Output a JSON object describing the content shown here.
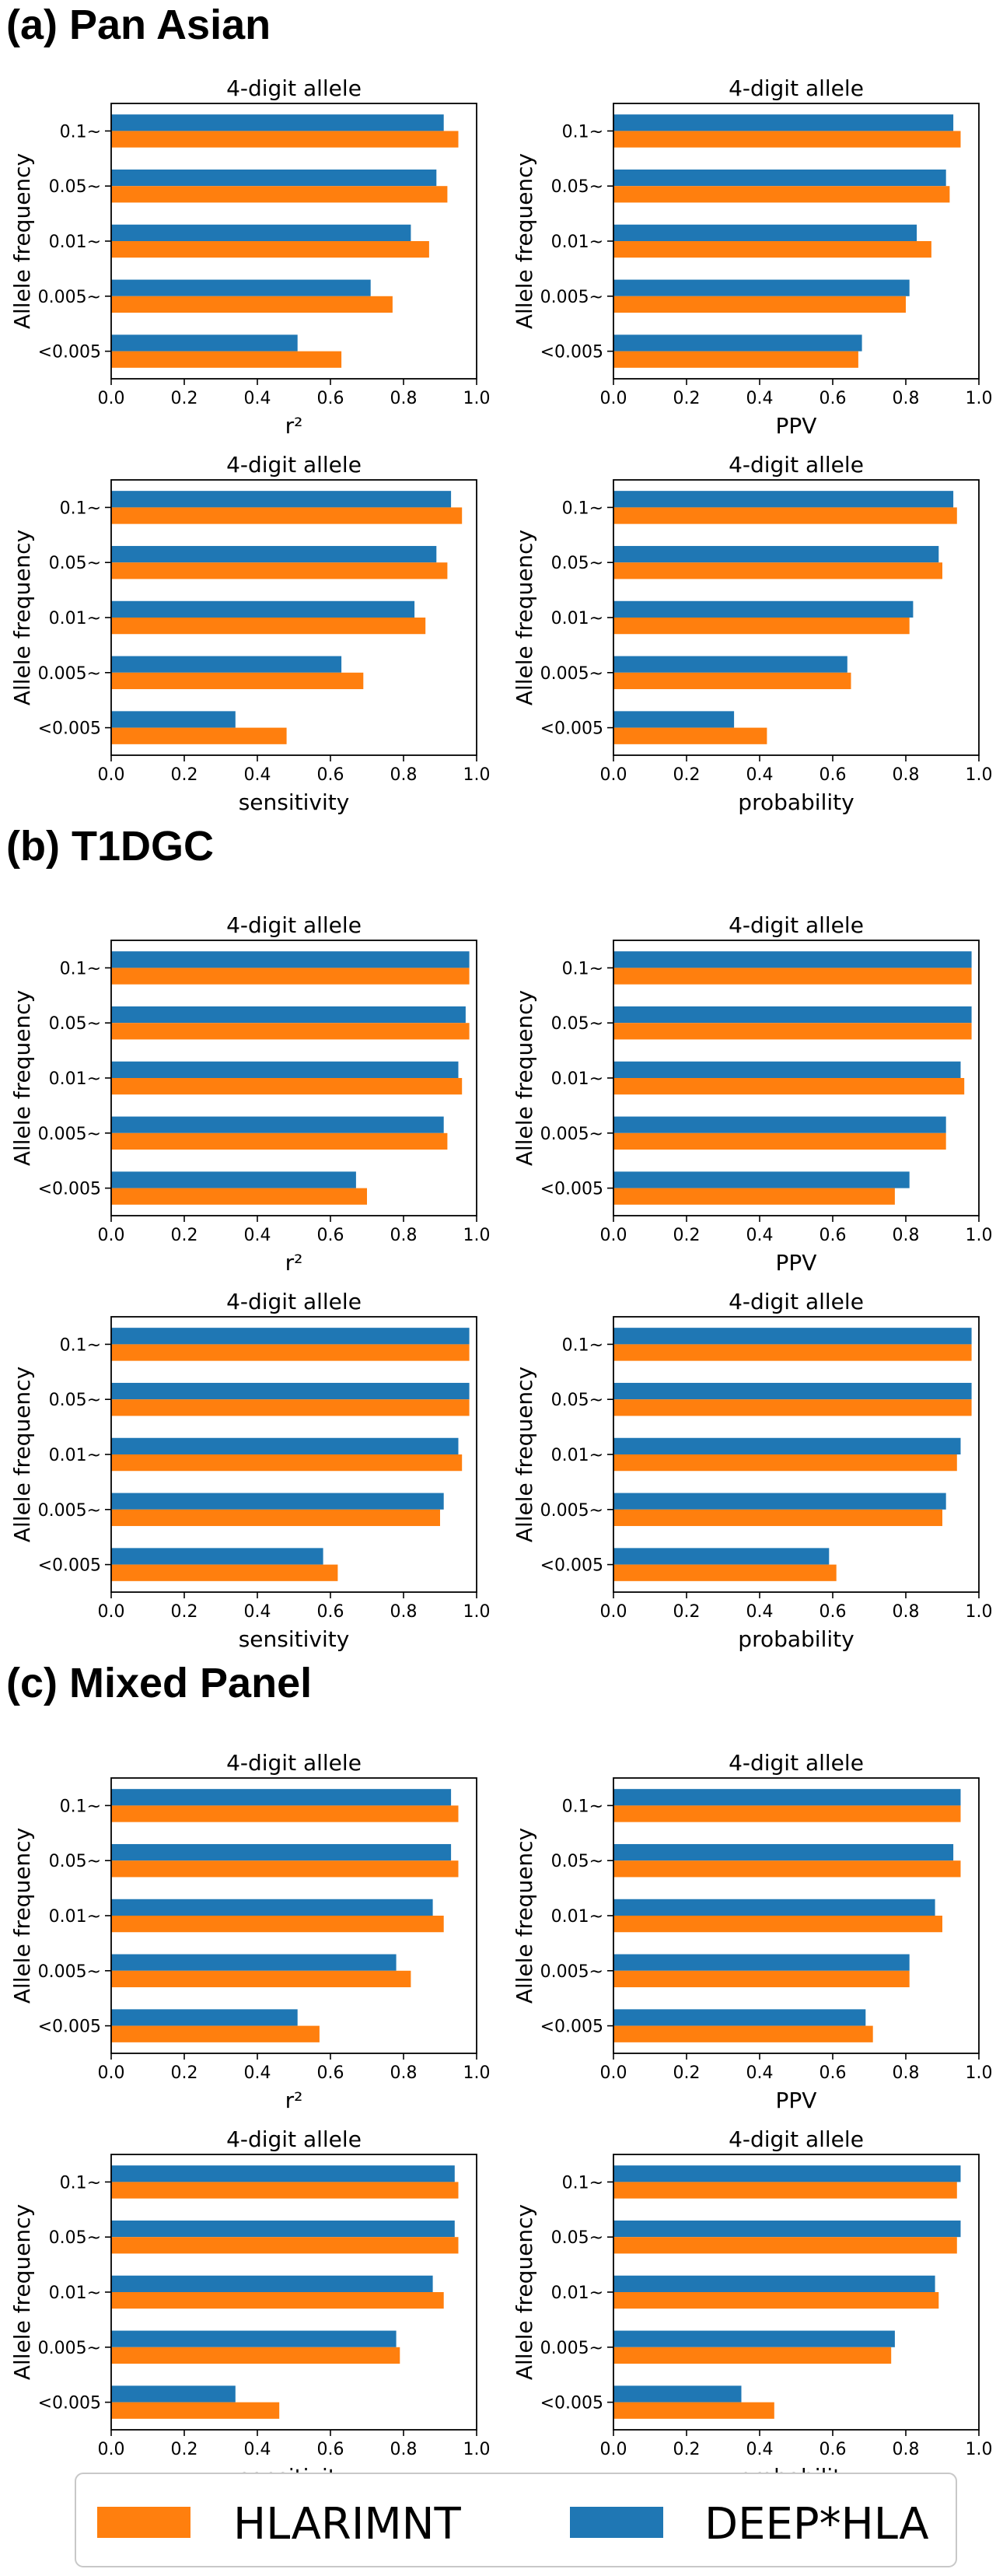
{
  "legend": {
    "items": [
      {
        "label": "HLARIMNT",
        "color": "#ff7f0e"
      },
      {
        "label": "DEEP*HLA",
        "color": "#1f77b4"
      }
    ]
  },
  "chart_data": [
    {
      "section": "(a) Pan Asian",
      "panels": [
        {
          "type": "bar",
          "orientation": "horizontal",
          "title": "4-digit allele",
          "xlabel": "r²",
          "ylabel": "Allele frequency",
          "categories": [
            "0.1~",
            "0.05~",
            "0.01~",
            "0.005~",
            "<0.005"
          ],
          "xlim": [
            0,
            1.0
          ],
          "xticks": [
            "0.0",
            "0.2",
            "0.4",
            "0.6",
            "0.8",
            "1.0"
          ],
          "series": [
            {
              "name": "DEEP*HLA",
              "values": [
                0.91,
                0.89,
                0.82,
                0.71,
                0.51
              ]
            },
            {
              "name": "HLARIMNT",
              "values": [
                0.95,
                0.92,
                0.87,
                0.77,
                0.63
              ]
            }
          ]
        },
        {
          "type": "bar",
          "orientation": "horizontal",
          "title": "4-digit allele",
          "xlabel": "PPV",
          "ylabel": "Allele frequency",
          "categories": [
            "0.1~",
            "0.05~",
            "0.01~",
            "0.005~",
            "<0.005"
          ],
          "xlim": [
            0,
            1.0
          ],
          "xticks": [
            "0.0",
            "0.2",
            "0.4",
            "0.6",
            "0.8",
            "1.0"
          ],
          "series": [
            {
              "name": "DEEP*HLA",
              "values": [
                0.93,
                0.91,
                0.83,
                0.81,
                0.68
              ]
            },
            {
              "name": "HLARIMNT",
              "values": [
                0.95,
                0.92,
                0.87,
                0.8,
                0.67
              ]
            }
          ]
        },
        {
          "type": "bar",
          "orientation": "horizontal",
          "title": "4-digit allele",
          "xlabel": "sensitivity",
          "ylabel": "Allele frequency",
          "categories": [
            "0.1~",
            "0.05~",
            "0.01~",
            "0.005~",
            "<0.005"
          ],
          "xlim": [
            0,
            1.0
          ],
          "xticks": [
            "0.0",
            "0.2",
            "0.4",
            "0.6",
            "0.8",
            "1.0"
          ],
          "series": [
            {
              "name": "DEEP*HLA",
              "values": [
                0.93,
                0.89,
                0.83,
                0.63,
                0.34
              ]
            },
            {
              "name": "HLARIMNT",
              "values": [
                0.96,
                0.92,
                0.86,
                0.69,
                0.48
              ]
            }
          ]
        },
        {
          "type": "bar",
          "orientation": "horizontal",
          "title": "4-digit allele",
          "xlabel": "probability",
          "ylabel": "Allele frequency",
          "categories": [
            "0.1~",
            "0.05~",
            "0.01~",
            "0.005~",
            "<0.005"
          ],
          "xlim": [
            0,
            1.0
          ],
          "xticks": [
            "0.0",
            "0.2",
            "0.4",
            "0.6",
            "0.8",
            "1.0"
          ],
          "series": [
            {
              "name": "DEEP*HLA",
              "values": [
                0.93,
                0.89,
                0.82,
                0.64,
                0.33
              ]
            },
            {
              "name": "HLARIMNT",
              "values": [
                0.94,
                0.9,
                0.81,
                0.65,
                0.42
              ]
            }
          ]
        }
      ]
    },
    {
      "section": "(b) T1DGC",
      "panels": [
        {
          "type": "bar",
          "orientation": "horizontal",
          "title": "4-digit allele",
          "xlabel": "r²",
          "ylabel": "Allele frequency",
          "categories": [
            "0.1~",
            "0.05~",
            "0.01~",
            "0.005~",
            "<0.005"
          ],
          "xlim": [
            0,
            1.0
          ],
          "xticks": [
            "0.0",
            "0.2",
            "0.4",
            "0.6",
            "0.8",
            "1.0"
          ],
          "series": [
            {
              "name": "DEEP*HLA",
              "values": [
                0.98,
                0.97,
                0.95,
                0.91,
                0.67
              ]
            },
            {
              "name": "HLARIMNT",
              "values": [
                0.98,
                0.98,
                0.96,
                0.92,
                0.7
              ]
            }
          ]
        },
        {
          "type": "bar",
          "orientation": "horizontal",
          "title": "4-digit allele",
          "xlabel": "PPV",
          "ylabel": "Allele frequency",
          "categories": [
            "0.1~",
            "0.05~",
            "0.01~",
            "0.005~",
            "<0.005"
          ],
          "xlim": [
            0,
            1.0
          ],
          "xticks": [
            "0.0",
            "0.2",
            "0.4",
            "0.6",
            "0.8",
            "1.0"
          ],
          "series": [
            {
              "name": "DEEP*HLA",
              "values": [
                0.98,
                0.98,
                0.95,
                0.91,
                0.81
              ]
            },
            {
              "name": "HLARIMNT",
              "values": [
                0.98,
                0.98,
                0.96,
                0.91,
                0.77
              ]
            }
          ]
        },
        {
          "type": "bar",
          "orientation": "horizontal",
          "title": "4-digit allele",
          "xlabel": "sensitivity",
          "ylabel": "Allele frequency",
          "categories": [
            "0.1~",
            "0.05~",
            "0.01~",
            "0.005~",
            "<0.005"
          ],
          "xlim": [
            0,
            1.0
          ],
          "xticks": [
            "0.0",
            "0.2",
            "0.4",
            "0.6",
            "0.8",
            "1.0"
          ],
          "series": [
            {
              "name": "DEEP*HLA",
              "values": [
                0.98,
                0.98,
                0.95,
                0.91,
                0.58
              ]
            },
            {
              "name": "HLARIMNT",
              "values": [
                0.98,
                0.98,
                0.96,
                0.9,
                0.62
              ]
            }
          ]
        },
        {
          "type": "bar",
          "orientation": "horizontal",
          "title": "4-digit allele",
          "xlabel": "probability",
          "ylabel": "Allele frequency",
          "categories": [
            "0.1~",
            "0.05~",
            "0.01~",
            "0.005~",
            "<0.005"
          ],
          "xlim": [
            0,
            1.0
          ],
          "xticks": [
            "0.0",
            "0.2",
            "0.4",
            "0.6",
            "0.8",
            "1.0"
          ],
          "series": [
            {
              "name": "DEEP*HLA",
              "values": [
                0.98,
                0.98,
                0.95,
                0.91,
                0.59
              ]
            },
            {
              "name": "HLARIMNT",
              "values": [
                0.98,
                0.98,
                0.94,
                0.9,
                0.61
              ]
            }
          ]
        }
      ]
    },
    {
      "section": "(c) Mixed Panel",
      "panels": [
        {
          "type": "bar",
          "orientation": "horizontal",
          "title": "4-digit allele",
          "xlabel": "r²",
          "ylabel": "Allele frequency",
          "categories": [
            "0.1~",
            "0.05~",
            "0.01~",
            "0.005~",
            "<0.005"
          ],
          "xlim": [
            0,
            1.0
          ],
          "xticks": [
            "0.0",
            "0.2",
            "0.4",
            "0.6",
            "0.8",
            "1.0"
          ],
          "series": [
            {
              "name": "DEEP*HLA",
              "values": [
                0.93,
                0.93,
                0.88,
                0.78,
                0.51
              ]
            },
            {
              "name": "HLARIMNT",
              "values": [
                0.95,
                0.95,
                0.91,
                0.82,
                0.57
              ]
            }
          ]
        },
        {
          "type": "bar",
          "orientation": "horizontal",
          "title": "4-digit allele",
          "xlabel": "PPV",
          "ylabel": "Allele frequency",
          "categories": [
            "0.1~",
            "0.05~",
            "0.01~",
            "0.005~",
            "<0.005"
          ],
          "xlim": [
            0,
            1.0
          ],
          "xticks": [
            "0.0",
            "0.2",
            "0.4",
            "0.6",
            "0.8",
            "1.0"
          ],
          "series": [
            {
              "name": "DEEP*HLA",
              "values": [
                0.95,
                0.93,
                0.88,
                0.81,
                0.69
              ]
            },
            {
              "name": "HLARIMNT",
              "values": [
                0.95,
                0.95,
                0.9,
                0.81,
                0.71
              ]
            }
          ]
        },
        {
          "type": "bar",
          "orientation": "horizontal",
          "title": "4-digit allele",
          "xlabel": "sensitivity",
          "ylabel": "Allele frequency",
          "categories": [
            "0.1~",
            "0.05~",
            "0.01~",
            "0.005~",
            "<0.005"
          ],
          "xlim": [
            0,
            1.0
          ],
          "xticks": [
            "0.0",
            "0.2",
            "0.4",
            "0.6",
            "0.8",
            "1.0"
          ],
          "series": [
            {
              "name": "DEEP*HLA",
              "values": [
                0.94,
                0.94,
                0.88,
                0.78,
                0.34
              ]
            },
            {
              "name": "HLARIMNT",
              "values": [
                0.95,
                0.95,
                0.91,
                0.79,
                0.46
              ]
            }
          ]
        },
        {
          "type": "bar",
          "orientation": "horizontal",
          "title": "4-digit allele",
          "xlabel": "probability",
          "ylabel": "Allele frequency",
          "categories": [
            "0.1~",
            "0.05~",
            "0.01~",
            "0.005~",
            "<0.005"
          ],
          "xlim": [
            0,
            1.0
          ],
          "xticks": [
            "0.0",
            "0.2",
            "0.4",
            "0.6",
            "0.8",
            "1.0"
          ],
          "series": [
            {
              "name": "DEEP*HLA",
              "values": [
                0.95,
                0.95,
                0.88,
                0.77,
                0.35
              ]
            },
            {
              "name": "HLARIMNT",
              "values": [
                0.94,
                0.94,
                0.89,
                0.76,
                0.44
              ]
            }
          ]
        }
      ]
    }
  ]
}
